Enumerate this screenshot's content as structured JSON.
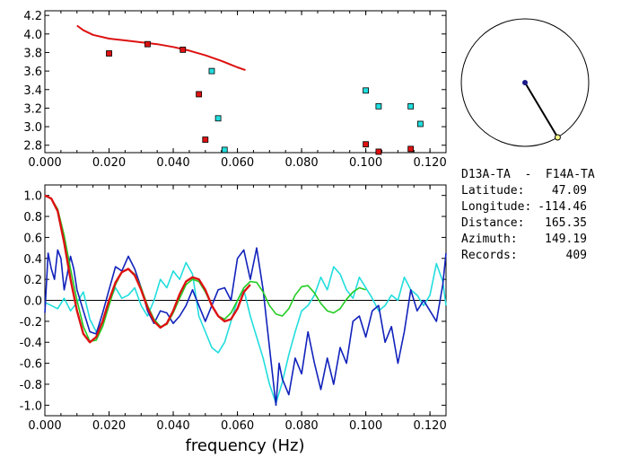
{
  "colors": {
    "red": "#dd1111",
    "cyan": "#22dddd",
    "blue": "#1122bb",
    "green": "#22cc22",
    "axis": "#000000",
    "markerRed": "#dd1111",
    "markerCyan": "#22dddd",
    "dotNavy": "#1a1a88",
    "dotYellow": "#ffff88"
  },
  "chart_data": [
    {
      "type": "scatter",
      "title": "",
      "xlabel": "",
      "ylabel": "",
      "xlim": [
        0.0,
        0.125
      ],
      "ylim": [
        2.72,
        4.25
      ],
      "xticks": [
        "0.000",
        "0.020",
        "0.040",
        "0.060",
        "0.080",
        "0.100",
        "0.120"
      ],
      "xtick_values": [
        0.0,
        0.02,
        0.04,
        0.06,
        0.08,
        0.1,
        0.12
      ],
      "yticks": [
        "2.8",
        "3.0",
        "3.2",
        "3.4",
        "3.6",
        "3.8",
        "4.0",
        "4.2"
      ],
      "ytick_values": [
        2.8,
        3.0,
        3.2,
        3.4,
        3.6,
        3.8,
        4.0,
        4.2
      ],
      "series": [
        {
          "name": "red-points",
          "kind": "markers",
          "color": "#dd1111",
          "x": [
            0.02,
            0.032,
            0.043,
            0.048,
            0.05,
            0.1,
            0.104,
            0.114
          ],
          "y": [
            3.79,
            3.89,
            3.83,
            3.35,
            2.86,
            2.81,
            2.73,
            2.76
          ]
        },
        {
          "name": "cyan-points",
          "kind": "markers",
          "color": "#22dddd",
          "x": [
            0.052,
            0.054,
            0.056,
            0.1,
            0.104,
            0.114,
            0.117
          ],
          "y": [
            3.6,
            3.09,
            2.75,
            3.39,
            3.22,
            3.22,
            3.03
          ]
        },
        {
          "name": "red-curve",
          "kind": "line",
          "color": "#dd1111",
          "x": [
            0.01,
            0.012,
            0.015,
            0.02,
            0.025,
            0.03,
            0.035,
            0.04,
            0.045,
            0.05,
            0.055,
            0.06,
            0.0625
          ],
          "y": [
            4.09,
            4.04,
            3.99,
            3.95,
            3.93,
            3.91,
            3.89,
            3.86,
            3.82,
            3.77,
            3.71,
            3.64,
            3.61
          ]
        }
      ]
    },
    {
      "type": "line",
      "title": "",
      "xlabel": "frequency (Hz)",
      "ylabel": "",
      "xlim": [
        0.0,
        0.125
      ],
      "ylim": [
        -1.1,
        1.1
      ],
      "xticks": [
        "0.000",
        "0.020",
        "0.040",
        "0.060",
        "0.080",
        "0.100",
        "0.120"
      ],
      "xtick_values": [
        0.0,
        0.02,
        0.04,
        0.06,
        0.08,
        0.1,
        0.12
      ],
      "yticks": [
        "1.0",
        "0.8",
        "0.6",
        "0.4",
        "0.2",
        "0.0",
        "-0.2",
        "-0.4",
        "-0.6",
        "-0.8",
        "-1.0"
      ],
      "ytick_values": [
        1.0,
        0.8,
        0.6,
        0.4,
        0.2,
        0.0,
        -0.2,
        -0.4,
        -0.6,
        -0.8,
        -1.0
      ],
      "zero_line": true,
      "series": [
        {
          "name": "cyan",
          "color": "#22dddd",
          "x": [
            0.0,
            0.002,
            0.004,
            0.006,
            0.008,
            0.01,
            0.012,
            0.014,
            0.016,
            0.018,
            0.02,
            0.022,
            0.024,
            0.026,
            0.028,
            0.03,
            0.032,
            0.034,
            0.036,
            0.038,
            0.04,
            0.042,
            0.044,
            0.046,
            0.048,
            0.05,
            0.052,
            0.054,
            0.056,
            0.058,
            0.06,
            0.062,
            0.064,
            0.066,
            0.068,
            0.07,
            0.072,
            0.074,
            0.076,
            0.078,
            0.08,
            0.082,
            0.084,
            0.086,
            0.088,
            0.09,
            0.092,
            0.094,
            0.096,
            0.098,
            0.1,
            0.102,
            0.104,
            0.106,
            0.108,
            0.11,
            0.112,
            0.114,
            0.116,
            0.118,
            0.12,
            0.122,
            0.124,
            0.125
          ],
          "y": [
            -0.02,
            -0.05,
            -0.08,
            0.02,
            -0.1,
            -0.02,
            0.08,
            -0.18,
            -0.3,
            -0.2,
            -0.02,
            0.12,
            0.02,
            0.05,
            0.12,
            -0.05,
            -0.15,
            0.0,
            0.2,
            0.12,
            0.28,
            0.2,
            0.36,
            0.25,
            -0.15,
            -0.3,
            -0.45,
            -0.5,
            -0.4,
            -0.2,
            0.0,
            0.1,
            -0.15,
            -0.35,
            -0.55,
            -0.8,
            -0.98,
            -0.78,
            -0.52,
            -0.3,
            -0.1,
            -0.05,
            0.05,
            0.22,
            0.1,
            0.32,
            0.25,
            0.1,
            0.02,
            0.22,
            0.12,
            0.02,
            -0.1,
            -0.05,
            0.05,
            0.0,
            0.22,
            0.1,
            0.05,
            -0.05,
            0.05,
            0.35,
            0.18,
            -0.05
          ]
        },
        {
          "name": "blue",
          "color": "#1122bb",
          "x": [
            0.0,
            0.001,
            0.002,
            0.003,
            0.004,
            0.005,
            0.006,
            0.007,
            0.008,
            0.009,
            0.01,
            0.012,
            0.014,
            0.016,
            0.018,
            0.02,
            0.022,
            0.024,
            0.026,
            0.028,
            0.03,
            0.032,
            0.034,
            0.036,
            0.038,
            0.04,
            0.042,
            0.044,
            0.046,
            0.048,
            0.05,
            0.052,
            0.054,
            0.056,
            0.058,
            0.06,
            0.062,
            0.064,
            0.066,
            0.068,
            0.07,
            0.072,
            0.073,
            0.074,
            0.076,
            0.078,
            0.08,
            0.082,
            0.084,
            0.086,
            0.088,
            0.09,
            0.092,
            0.094,
            0.096,
            0.098,
            0.1,
            0.102,
            0.104,
            0.106,
            0.108,
            0.11,
            0.112,
            0.114,
            0.116,
            0.118,
            0.12,
            0.122,
            0.124,
            0.125
          ],
          "y": [
            -0.12,
            0.45,
            0.3,
            0.2,
            0.48,
            0.4,
            0.1,
            0.25,
            0.42,
            0.3,
            0.1,
            -0.1,
            -0.3,
            -0.32,
            -0.12,
            0.1,
            0.32,
            0.28,
            0.42,
            0.3,
            0.12,
            -0.1,
            -0.22,
            -0.1,
            -0.12,
            -0.22,
            -0.15,
            -0.05,
            0.1,
            -0.05,
            -0.2,
            -0.05,
            0.1,
            0.12,
            0.0,
            0.4,
            0.48,
            0.2,
            0.5,
            0.1,
            -0.45,
            -1.0,
            -0.6,
            -0.75,
            -0.9,
            -0.55,
            -0.7,
            -0.3,
            -0.6,
            -0.85,
            -0.55,
            -0.8,
            -0.45,
            -0.6,
            -0.2,
            -0.15,
            -0.35,
            -0.1,
            -0.05,
            -0.4,
            -0.25,
            -0.6,
            -0.3,
            0.1,
            -0.1,
            0.0,
            -0.1,
            -0.2,
            0.15,
            0.45
          ]
        },
        {
          "name": "green",
          "color": "#22cc22",
          "x": [
            0.0,
            0.002,
            0.004,
            0.006,
            0.008,
            0.01,
            0.012,
            0.014,
            0.016,
            0.018,
            0.02,
            0.022,
            0.024,
            0.026,
            0.028,
            0.03,
            0.032,
            0.034,
            0.036,
            0.038,
            0.04,
            0.042,
            0.044,
            0.046,
            0.048,
            0.05,
            0.052,
            0.054,
            0.056,
            0.058,
            0.06,
            0.062,
            0.064,
            0.066,
            0.068,
            0.07,
            0.072,
            0.074,
            0.076,
            0.078,
            0.08,
            0.082,
            0.084,
            0.086,
            0.088,
            0.09,
            0.092,
            0.094,
            0.096,
            0.098,
            0.1
          ],
          "y": [
            1.0,
            0.97,
            0.87,
            0.62,
            0.3,
            0.0,
            -0.25,
            -0.39,
            -0.38,
            -0.25,
            -0.05,
            0.15,
            0.27,
            0.3,
            0.25,
            0.12,
            -0.05,
            -0.18,
            -0.25,
            -0.23,
            -0.12,
            0.02,
            0.15,
            0.2,
            0.18,
            0.08,
            -0.05,
            -0.15,
            -0.18,
            -0.12,
            0.0,
            0.12,
            0.18,
            0.17,
            0.08,
            -0.05,
            -0.13,
            -0.15,
            -0.08,
            0.05,
            0.13,
            0.14,
            0.07,
            -0.03,
            -0.1,
            -0.12,
            -0.08,
            0.01,
            0.08,
            0.12,
            0.1
          ]
        },
        {
          "name": "red",
          "color": "#dd1111",
          "x": [
            0.0,
            0.002,
            0.004,
            0.006,
            0.008,
            0.01,
            0.012,
            0.014,
            0.016,
            0.018,
            0.02,
            0.022,
            0.024,
            0.026,
            0.028,
            0.03,
            0.032,
            0.034,
            0.036,
            0.038,
            0.04,
            0.042,
            0.044,
            0.046,
            0.048,
            0.05,
            0.052,
            0.054,
            0.056,
            0.058,
            0.06,
            0.062,
            0.064
          ],
          "y": [
            1.0,
            0.97,
            0.85,
            0.55,
            0.2,
            -0.1,
            -0.32,
            -0.4,
            -0.35,
            -0.2,
            0.0,
            0.17,
            0.27,
            0.3,
            0.24,
            0.1,
            -0.07,
            -0.2,
            -0.26,
            -0.22,
            -0.1,
            0.06,
            0.18,
            0.22,
            0.2,
            0.1,
            -0.05,
            -0.15,
            -0.2,
            -0.18,
            -0.08,
            0.08,
            0.15
          ]
        }
      ]
    }
  ],
  "map": {
    "azimuth_deg": 149.19
  },
  "info": {
    "station_pair": "D13A-TA  -  F14A-TA",
    "rows": [
      {
        "label": "Latitude:",
        "value": "47.09"
      },
      {
        "label": "Longitude:",
        "value": "-114.46"
      },
      {
        "label": "Distance:",
        "value": "165.35"
      },
      {
        "label": "Azimuth:",
        "value": "149.19"
      },
      {
        "label": "Records:",
        "value": "409"
      }
    ]
  }
}
